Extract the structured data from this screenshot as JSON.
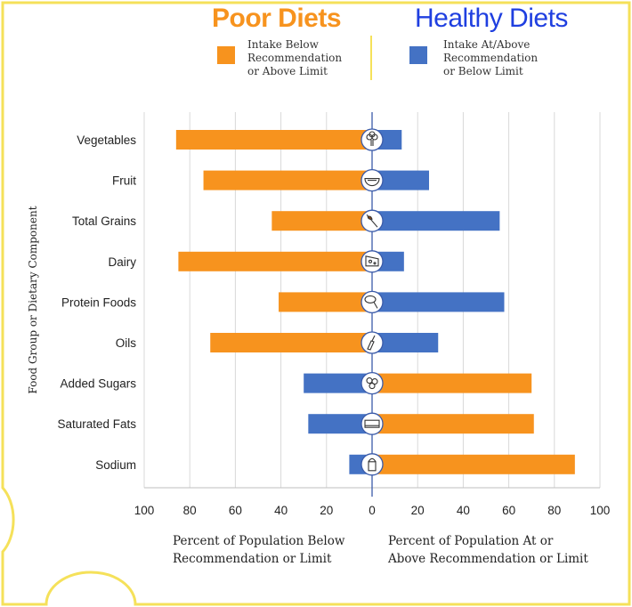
{
  "titles": {
    "poor": "Poor Diets",
    "healthy": "Healthy Diets"
  },
  "legend": {
    "poor": {
      "lines": [
        "Intake Below",
        "Recommendation",
        "or Above Limit"
      ],
      "color": "#F7931E"
    },
    "healthy": {
      "lines": [
        "Intake At/Above",
        "Recommendation",
        "or Below Limit"
      ],
      "color": "#4472C4"
    }
  },
  "chart_data": {
    "type": "bar",
    "orientation": "horizontal-diverging",
    "ylabel": "Food Group or Dietary Component",
    "xlabel_left": [
      "Percent of Population Below",
      "Recommendation or Limit"
    ],
    "xlabel_right": [
      "Percent of Population At or",
      "Above Recommendation or Limit"
    ],
    "xticks": [
      100,
      80,
      60,
      40,
      20,
      0,
      20,
      40,
      60,
      80,
      100
    ],
    "xlim": [
      -100,
      100
    ],
    "grid": true,
    "colors": {
      "orange": "#F7931E",
      "blue": "#4472C4"
    },
    "categories": [
      {
        "name": "Vegetables",
        "left": 86,
        "left_color": "orange",
        "right": 13,
        "right_color": "blue",
        "icon": "broccoli-icon"
      },
      {
        "name": "Fruit",
        "left": 74,
        "left_color": "orange",
        "right": 25,
        "right_color": "blue",
        "icon": "watermelon-icon"
      },
      {
        "name": "Total Grains",
        "left": 44,
        "left_color": "orange",
        "right": 56,
        "right_color": "blue",
        "icon": "wheat-icon"
      },
      {
        "name": "Dairy",
        "left": 85,
        "left_color": "orange",
        "right": 14,
        "right_color": "blue",
        "icon": "cheese-icon"
      },
      {
        "name": "Protein Foods",
        "left": 41,
        "left_color": "orange",
        "right": 58,
        "right_color": "blue",
        "icon": "drumstick-icon"
      },
      {
        "name": "Oils",
        "left": 71,
        "left_color": "orange",
        "right": 29,
        "right_color": "blue",
        "icon": "oil-bottle-icon"
      },
      {
        "name": "Added Sugars",
        "left": 30,
        "left_color": "blue",
        "right": 70,
        "right_color": "orange",
        "icon": "candy-icon"
      },
      {
        "name": "Saturated Fats",
        "left": 28,
        "left_color": "blue",
        "right": 71,
        "right_color": "orange",
        "icon": "butter-icon"
      },
      {
        "name": "Sodium",
        "left": 10,
        "left_color": "blue",
        "right": 89,
        "right_color": "orange",
        "icon": "salt-shaker-icon"
      }
    ]
  }
}
